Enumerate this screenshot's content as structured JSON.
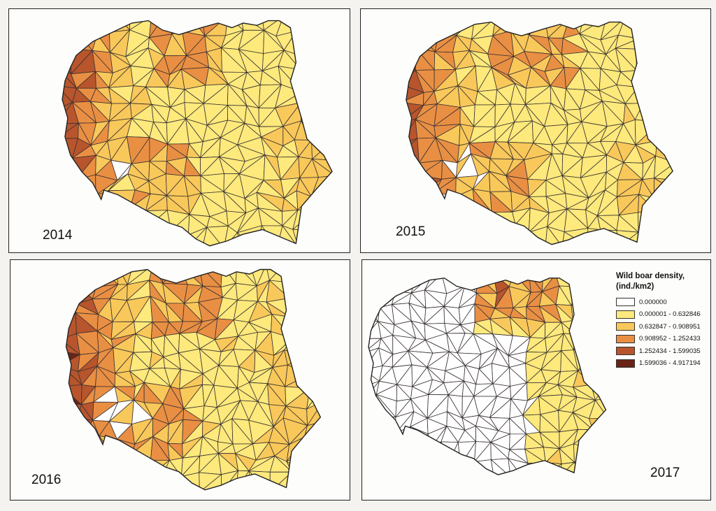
{
  "colors": {
    "background": "#fdfdfb",
    "border": "#3a3232",
    "classes": [
      "#ffffff",
      "#fde97c",
      "#f9c85a",
      "#e98f43",
      "#b8552c",
      "#6a2416"
    ]
  },
  "maps": [
    {
      "id": "p1",
      "year": "2014"
    },
    {
      "id": "p2",
      "year": "2015"
    },
    {
      "id": "p3",
      "year": "2016"
    },
    {
      "id": "p4",
      "year": "2017"
    }
  ],
  "legend": {
    "title": "Wild boar density, (ind./km2)",
    "items": [
      {
        "label": "0.000000",
        "color": "#ffffff"
      },
      {
        "label": "0.000001 - 0.632846",
        "color": "#fde97c"
      },
      {
        "label": "0.632847 - 0.908951",
        "color": "#f9c85a"
      },
      {
        "label": "0.908952 - 1.252433",
        "color": "#e98f43"
      },
      {
        "label": "1.252434 - 1.599035",
        "color": "#b8552c"
      },
      {
        "label": "1.599036 - 4.917194",
        "color": "#6a2416"
      }
    ]
  }
}
